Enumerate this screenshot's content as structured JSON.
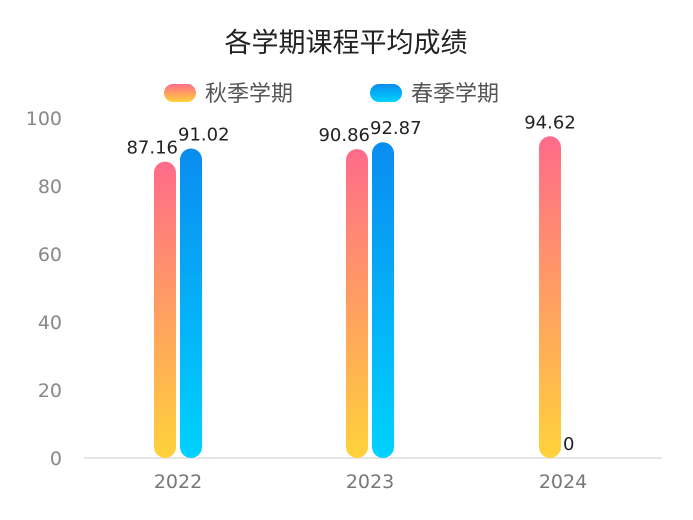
{
  "chart_data": {
    "type": "bar",
    "title": "各学期课程平均成绩",
    "categories": [
      "2022",
      "2023",
      "2024"
    ],
    "series": [
      {
        "name": "秋季学期",
        "values": [
          87.16,
          90.86,
          94.62
        ],
        "color_top": "#ff6b8a",
        "color_bottom": "#ffd23a"
      },
      {
        "name": "春季学期",
        "values": [
          91.02,
          92.87,
          0
        ],
        "color_top": "#0a8cf0",
        "color_bottom": "#00d2ff"
      }
    ],
    "data_labels": [
      [
        "87.16",
        "90.86",
        "94.62"
      ],
      [
        "91.02",
        "92.87",
        "0"
      ]
    ],
    "yticks": [
      "0",
      "20",
      "40",
      "60",
      "80",
      "100"
    ],
    "ylim": [
      0,
      100
    ],
    "legend_position": "top-center",
    "grid": false
  }
}
